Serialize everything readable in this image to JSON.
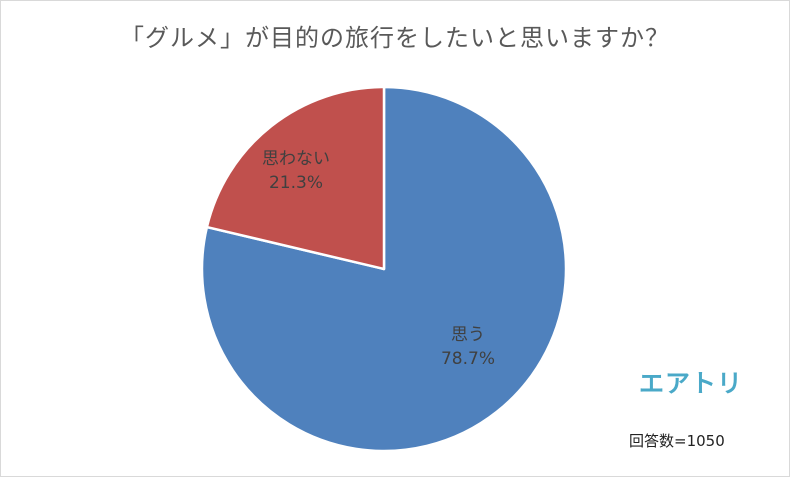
{
  "chart_data": {
    "type": "pie",
    "title": "「グルメ」が目的の旅行をしたいと思いますか？",
    "slices": [
      {
        "label": "思う",
        "value": 78.7,
        "value_label": "78.7%",
        "color": "#4f81bd"
      },
      {
        "label": "思わない",
        "value": 21.3,
        "value_label": "21.3%",
        "color": "#c0504d"
      }
    ],
    "respondents_label": "回答数=1050"
  },
  "brand": {
    "name": "エアトリ",
    "color": "#4aa9c8"
  }
}
